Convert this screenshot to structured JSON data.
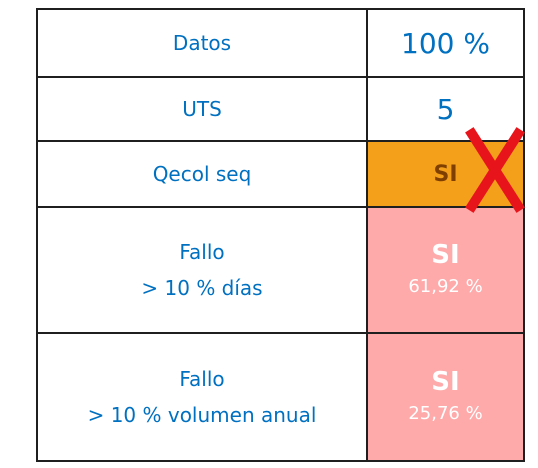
{
  "table": {
    "rows": [
      {
        "label": [
          "Datos"
        ],
        "value": "100 %"
      },
      {
        "label": [
          "UTS"
        ],
        "value": "5"
      },
      {
        "label": [
          "Qecol seq"
        ],
        "value": "SI"
      },
      {
        "label": [
          "Fallo",
          "> 10 % días"
        ],
        "value": "SI",
        "detail": "61,92 %"
      },
      {
        "label": [
          "Fallo",
          "> 10 % volumen anual"
        ],
        "value": "SI",
        "detail": "25,76 %"
      }
    ]
  }
}
